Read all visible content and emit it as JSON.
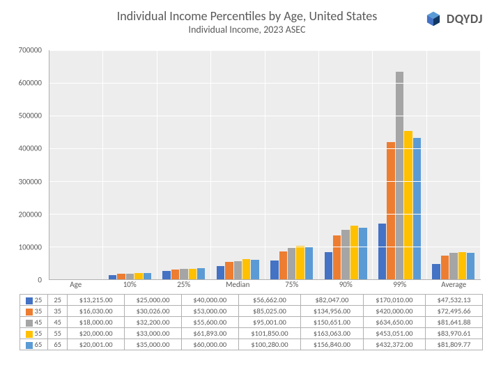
{
  "title": "Individual Income Percentiles by Age, United States",
  "subtitle": "Individual Income, 2023 ASEC",
  "logo_text": "DQYDJ",
  "y_axis": {
    "min": 0,
    "max": 700000,
    "step": 100000
  },
  "categories": [
    "Age",
    "10%",
    "25%",
    "Median",
    "75%",
    "90%",
    "99%",
    "Average"
  ],
  "series": [
    {
      "label": "25",
      "color": "#4472c4",
      "values": [
        25,
        13215.0,
        25000.0,
        40000.0,
        56662.0,
        82047.0,
        170010.0,
        47532.13
      ]
    },
    {
      "label": "35",
      "color": "#ed7d31",
      "values": [
        35,
        16030.0,
        30026.0,
        53000.0,
        85025.0,
        134956.0,
        420000.0,
        72495.66
      ]
    },
    {
      "label": "45",
      "color": "#a5a5a5",
      "values": [
        45,
        18000.0,
        32200.0,
        55600.0,
        95001.0,
        150651.0,
        634650.0,
        81641.88
      ]
    },
    {
      "label": "55",
      "color": "#ffc000",
      "values": [
        55,
        20000.0,
        33000.0,
        61893.0,
        101850.0,
        163063.0,
        453051.0,
        83970.61
      ]
    },
    {
      "label": "65",
      "color": "#5b9bd5",
      "values": [
        65,
        20001.0,
        35000.0,
        60000.0,
        100280.0,
        156840.0,
        432372.0,
        81809.77
      ]
    }
  ],
  "background_color": "#ededed",
  "grid_color": "#ffffff",
  "text_color": "#595959",
  "title_fontsize": 18,
  "subtitle_fontsize": 14,
  "axis_fontsize": 11
}
